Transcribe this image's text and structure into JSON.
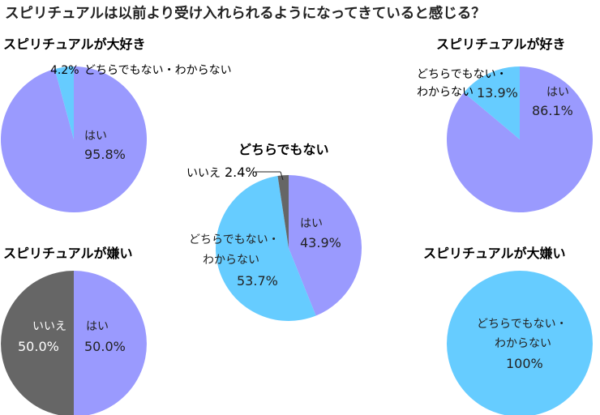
{
  "title": "スピリチュアルは以前より受け入れられるようになってきていると感じる？",
  "colors": {
    "yes": "#9a9afe",
    "neither": "#66ccff",
    "no": "#666666",
    "text": "#222222"
  },
  "chart_data": [
    {
      "type": "pie",
      "title": "スピリチュアルが大好き",
      "slices": [
        {
          "label": "はい",
          "value": 95.8,
          "value_text": "95.8%",
          "color": "#9a9afe"
        },
        {
          "label": "どちらでもない・わからない",
          "value": 4.2,
          "value_text": "4.2%",
          "color": "#66ccff"
        }
      ]
    },
    {
      "type": "pie",
      "title": "スピリチュアルが好き",
      "slices": [
        {
          "label": "はい",
          "value": 86.1,
          "value_text": "86.1%",
          "color": "#9a9afe"
        },
        {
          "label": "どちらでもない・わからない",
          "value": 13.9,
          "value_text": "13.9%",
          "color": "#66ccff"
        }
      ]
    },
    {
      "type": "pie",
      "title": "どちらでもない",
      "slices": [
        {
          "label": "はい",
          "value": 43.9,
          "value_text": "43.9%",
          "color": "#9a9afe"
        },
        {
          "label": "どちらでもない・わからない",
          "value": 53.7,
          "value_text": "53.7%",
          "color": "#66ccff"
        },
        {
          "label": "いいえ",
          "value": 2.4,
          "value_text": "2.4%",
          "color": "#666666"
        }
      ]
    },
    {
      "type": "pie",
      "title": "スピリチュアルが嫌い",
      "slices": [
        {
          "label": "はい",
          "value": 50.0,
          "value_text": "50.0%",
          "color": "#9a9afe"
        },
        {
          "label": "いいえ",
          "value": 50.0,
          "value_text": "50.0%",
          "color": "#666666"
        }
      ]
    },
    {
      "type": "pie",
      "title": "スピリチュアルが大嫌い",
      "slices": [
        {
          "label": "どちらでもない・わからない",
          "value": 100,
          "value_text": "100%",
          "color": "#66ccff"
        }
      ]
    }
  ]
}
